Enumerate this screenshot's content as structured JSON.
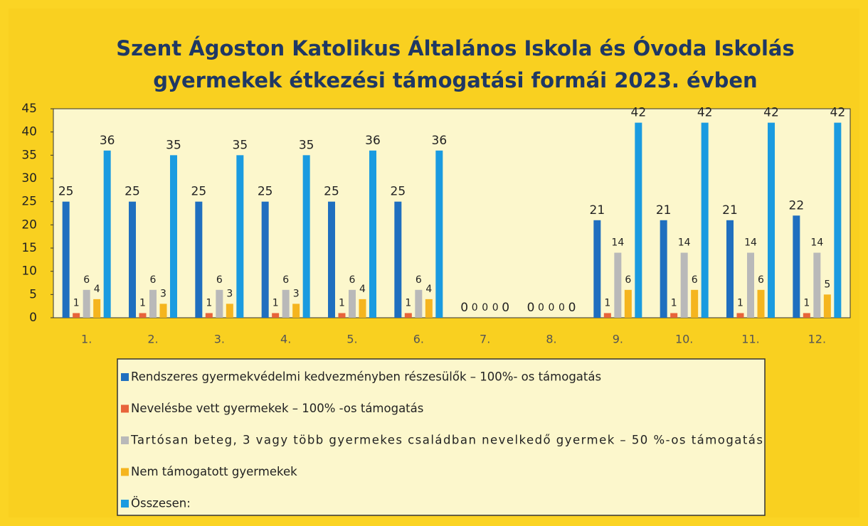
{
  "chart_data": {
    "type": "bar",
    "title": [
      "Szent Ágoston Katolikus Általános Iskola és Óvoda Iskolás",
      "gyermekek étkezési támogatási formái 2023. évben"
    ],
    "categories": [
      "1.",
      "2.",
      "3.",
      "4.",
      "5.",
      "6.",
      "7.",
      "8.",
      "9.",
      "10.",
      "11.",
      "12."
    ],
    "series": [
      {
        "name": "Rendszeres gyermekvédelmi kedvezményben részesülők – 100%- os támogatás",
        "color": "#1f6fbf",
        "values": [
          25,
          25,
          25,
          25,
          25,
          25,
          0,
          0,
          21,
          21,
          21,
          22
        ]
      },
      {
        "name": "Nevelésbe vett gyermekek – 100% -os támogatás",
        "color": "#e8643a",
        "values": [
          1,
          1,
          1,
          1,
          1,
          1,
          0,
          0,
          1,
          1,
          1,
          1
        ]
      },
      {
        "name": "Tartósan beteg, 3 vagy több gyermekes családban nevelkedő gyermek – 50 %-os támogatás",
        "color": "#b9b9b9",
        "values": [
          6,
          6,
          6,
          6,
          6,
          6,
          0,
          0,
          14,
          14,
          14,
          14
        ]
      },
      {
        "name": "Nem támogatott gyermekek",
        "color": "#f5b51e",
        "values": [
          4,
          3,
          3,
          3,
          4,
          4,
          0,
          0,
          6,
          6,
          6,
          5
        ]
      },
      {
        "name": "Összesen:",
        "color": "#1a9be0",
        "values": [
          36,
          35,
          35,
          35,
          36,
          36,
          0,
          0,
          42,
          42,
          42,
          42
        ]
      }
    ],
    "ylim": [
      0,
      45
    ],
    "yticks": [
      0,
      5,
      10,
      15,
      20,
      25,
      30,
      35,
      40,
      45
    ],
    "grid": false
  }
}
